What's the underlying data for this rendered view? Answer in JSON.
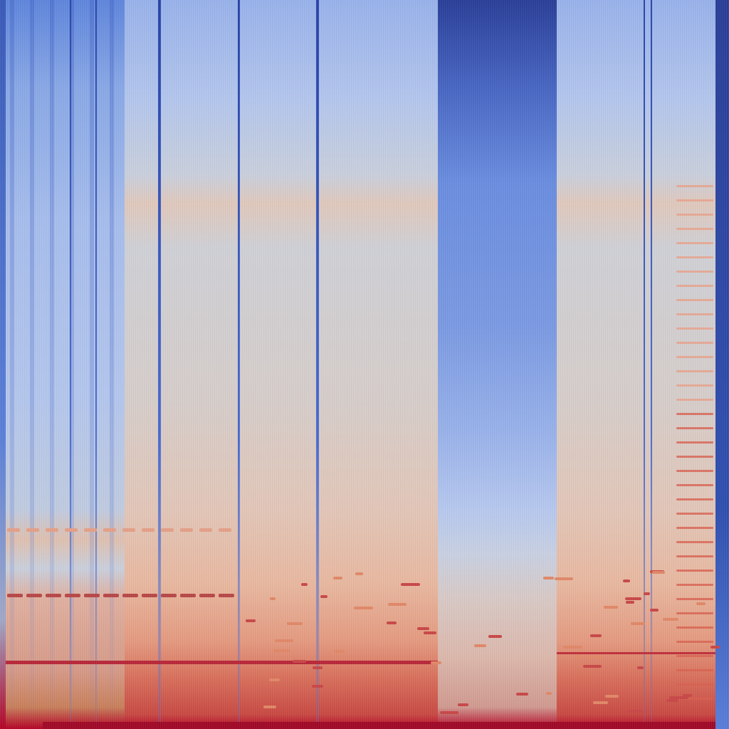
{
  "image": {
    "kind": "spectrogram",
    "colormap": {
      "low": "#3b4cc0",
      "mid": "#c8cdd8",
      "high": "#b40426",
      "deep_blue": "#2a3f98",
      "light_blue": "#a9c0ee",
      "peach": "#ebc2ae",
      "salmon": "#e88a6e"
    }
  }
}
